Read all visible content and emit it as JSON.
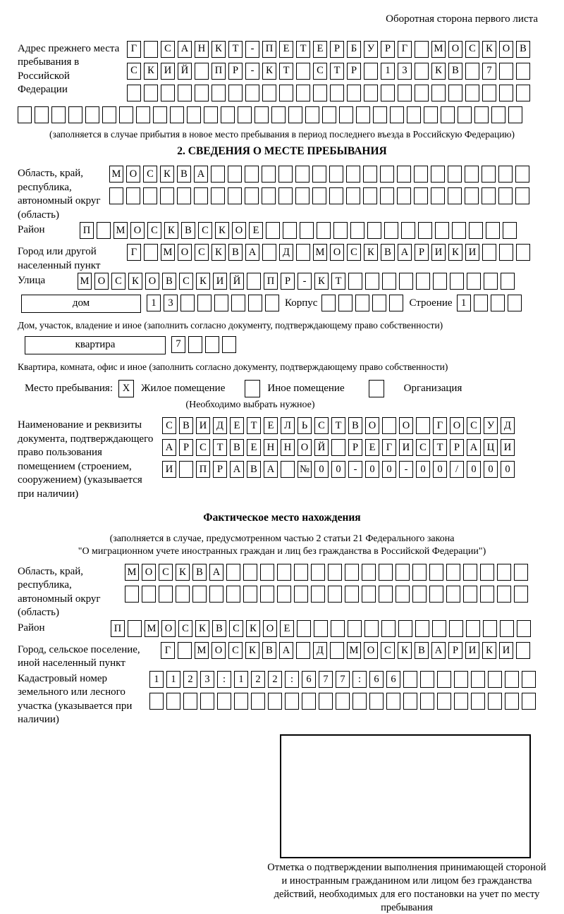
{
  "page": {
    "header_note": "Оборотная сторона первого листа"
  },
  "prev_address": {
    "label": "Адрес прежнего места пребывания в Российской Федерации",
    "rows": [
      [
        "Г",
        "",
        "С",
        "А",
        "Н",
        "К",
        "Т",
        "-",
        "П",
        "Е",
        "Т",
        "Е",
        "Р",
        "Б",
        "У",
        "Р",
        "Г",
        "",
        "М",
        "О",
        "С",
        "К",
        "О",
        "В"
      ],
      [
        "С",
        "К",
        "И",
        "Й",
        "",
        "П",
        "Р",
        "-",
        "К",
        "Т",
        "",
        "С",
        "Т",
        "Р",
        "",
        "1",
        "3",
        "",
        "К",
        "В",
        "",
        "7",
        "",
        ""
      ],
      [
        "",
        "",
        "",
        "",
        "",
        "",
        "",
        "",
        "",
        "",
        "",
        "",
        "",
        "",
        "",
        "",
        "",
        "",
        "",
        "",
        "",
        "",
        "",
        ""
      ]
    ],
    "extra_row": [
      "",
      "",
      "",
      "",
      "",
      "",
      "",
      "",
      "",
      "",
      "",
      "",
      "",
      "",
      "",
      "",
      "",
      "",
      "",
      "",
      "",
      "",
      "",
      "",
      "",
      "",
      "",
      "",
      "",
      ""
    ],
    "note": "(заполняется в случае прибытия в новое место пребывания в период последнего въезда в Российскую Федерацию)"
  },
  "section2": {
    "title": "2. СВЕДЕНИЯ О МЕСТЕ ПРЕБЫВАНИЯ",
    "oblast": {
      "label": "Область, край, республика, автономный округ (область)",
      "rows": [
        [
          "М",
          "О",
          "С",
          "К",
          "В",
          "А",
          "",
          "",
          "",
          "",
          "",
          "",
          "",
          "",
          "",
          "",
          "",
          "",
          "",
          "",
          "",
          "",
          "",
          "",
          ""
        ],
        [
          "",
          "",
          "",
          "",
          "",
          "",
          "",
          "",
          "",
          "",
          "",
          "",
          "",
          "",
          "",
          "",
          "",
          "",
          "",
          "",
          "",
          "",
          "",
          "",
          ""
        ]
      ]
    },
    "raion": {
      "label": "Район",
      "cells": [
        "П",
        "",
        "М",
        "О",
        "С",
        "К",
        "В",
        "С",
        "К",
        "О",
        "Е",
        "",
        "",
        "",
        "",
        "",
        "",
        "",
        "",
        "",
        "",
        "",
        "",
        "",
        "",
        ""
      ]
    },
    "gorod": {
      "label": "Город или другой населенный пункт",
      "cells": [
        "Г",
        "",
        "М",
        "О",
        "С",
        "К",
        "В",
        "А",
        "",
        "Д",
        "",
        "М",
        "О",
        "С",
        "К",
        "В",
        "А",
        "Р",
        "И",
        "К",
        "И",
        "",
        "",
        ""
      ]
    },
    "ulitsa": {
      "label": "Улица",
      "cells": [
        "М",
        "О",
        "С",
        "К",
        "О",
        "В",
        "С",
        "К",
        "И",
        "Й",
        "",
        "П",
        "Р",
        "-",
        "К",
        "Т",
        "",
        "",
        "",
        "",
        "",
        "",
        "",
        "",
        "",
        ""
      ]
    },
    "dom": {
      "box_label": "дом",
      "cells": [
        "1",
        "3",
        "",
        "",
        "",
        "",
        "",
        ""
      ],
      "korpus_label": "Корпус",
      "korpus_cells": [
        "",
        "",
        "",
        "",
        ""
      ],
      "stroenie_label": "Строение",
      "stroenie_cells": [
        "1",
        "",
        "",
        ""
      ],
      "note": "Дом, участок, владение и иное (заполнить согласно документу, подтверждающему право собственности)"
    },
    "kvartira": {
      "box_label": "квартира",
      "cells": [
        "7",
        "",
        "",
        ""
      ],
      "note": "Квартира, комната, офис и иное (заполнить согласно документу, подтверждающему право собственности)"
    },
    "place_type": {
      "label": "Место пребывания:",
      "options": [
        {
          "label": "Жилое помещение",
          "checked": "X"
        },
        {
          "label": "Иное помещение",
          "checked": ""
        },
        {
          "label": "Организация",
          "checked": ""
        }
      ],
      "note": "(Необходимо выбрать нужное)"
    },
    "document": {
      "label": "Наименование и реквизиты документа, подтверждающего право пользования помещением (строением, сооружением) (указывается при наличии)",
      "rows": [
        [
          "С",
          "В",
          "И",
          "Д",
          "Е",
          "Т",
          "Е",
          "Л",
          "Ь",
          "С",
          "Т",
          "В",
          "О",
          "",
          "О",
          "",
          "Г",
          "О",
          "С",
          "У",
          "Д"
        ],
        [
          "А",
          "Р",
          "С",
          "Т",
          "В",
          "Е",
          "Н",
          "Н",
          "О",
          "Й",
          "",
          "Р",
          "Е",
          "Г",
          "И",
          "С",
          "Т",
          "Р",
          "А",
          "Ц",
          "И"
        ],
        [
          "И",
          "",
          "П",
          "Р",
          "А",
          "В",
          "А",
          "",
          "№",
          "0",
          "0",
          "-",
          "0",
          "0",
          "-",
          "0",
          "0",
          "/",
          "0",
          "0",
          "0"
        ]
      ]
    }
  },
  "actual_location": {
    "title": "Фактическое место нахождения",
    "note_line1": "(заполняется в случае, предусмотренном частью 2 статьи 21 Федерального закона",
    "note_line2": "\"О миграционном учете иностранных граждан и лиц без гражданства в Российской Федерации\")",
    "oblast": {
      "label": "Область, край, республика, автономный округ (область)",
      "rows": [
        [
          "М",
          "О",
          "С",
          "К",
          "В",
          "А",
          "",
          "",
          "",
          "",
          "",
          "",
          "",
          "",
          "",
          "",
          "",
          "",
          "",
          "",
          "",
          "",
          "",
          ""
        ],
        [
          "",
          "",
          "",
          "",
          "",
          "",
          "",
          "",
          "",
          "",
          "",
          "",
          "",
          "",
          "",
          "",
          "",
          "",
          "",
          "",
          "",
          "",
          "",
          ""
        ]
      ]
    },
    "raion": {
      "label": "Район",
      "cells": [
        "П",
        "",
        "М",
        "О",
        "С",
        "К",
        "В",
        "С",
        "К",
        "О",
        "Е",
        "",
        "",
        "",
        "",
        "",
        "",
        "",
        "",
        "",
        "",
        "",
        "",
        "",
        ""
      ]
    },
    "gorod": {
      "label": "Город, сельское поселение, иной населенный пункт",
      "cells": [
        "Г",
        "",
        "М",
        "О",
        "С",
        "К",
        "В",
        "А",
        "",
        "Д",
        "",
        "М",
        "О",
        "С",
        "К",
        "В",
        "А",
        "Р",
        "И",
        "К",
        "И",
        ""
      ]
    },
    "kadastr": {
      "label": "Кадастровый номер земельного или лесного участка (указывается при наличии)",
      "rows": [
        [
          "1",
          "1",
          "2",
          "3",
          ":",
          "1",
          "2",
          "2",
          ":",
          "6",
          "7",
          "7",
          ":",
          "6",
          "6",
          "",
          "",
          "",
          "",
          "",
          "",
          "",
          ""
        ],
        [
          "",
          "",
          "",
          "",
          "",
          "",
          "",
          "",
          "",
          "",
          "",
          "",
          "",
          "",
          "",
          "",
          "",
          "",
          "",
          "",
          "",
          "",
          ""
        ]
      ]
    },
    "stamp_note": "Отметка о подтверждении выполнения принимающей стороной и иностранным гражданином или лицом без гражданства действий, необходимых для его постановки на учет по месту пребывания"
  }
}
